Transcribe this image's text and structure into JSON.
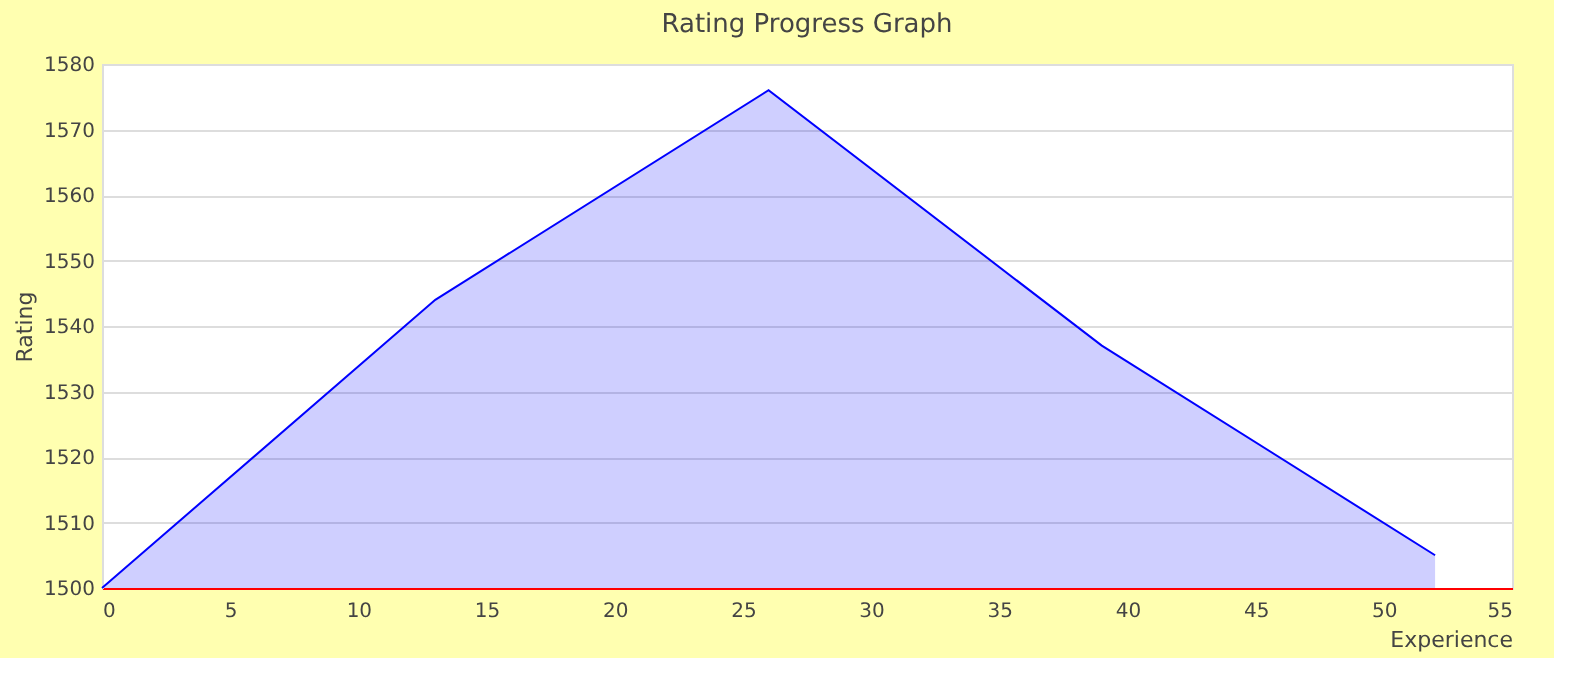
{
  "chart_data": {
    "type": "area",
    "title": "Rating Progress Graph",
    "xlabel": "Experience",
    "ylabel": "Rating",
    "x": [
      0,
      13,
      26,
      39,
      52
    ],
    "series": [
      {
        "color": "#0000ff",
        "values": [
          1500,
          1544,
          1576,
          1537,
          1505
        ]
      }
    ],
    "xlim": [
      0,
      55
    ],
    "xticks": [
      0,
      5,
      10,
      15,
      20,
      25,
      30,
      35,
      40,
      45,
      50,
      55
    ],
    "ylim": [
      1500,
      1580
    ],
    "yticks": [
      1500,
      1510,
      1520,
      1530,
      1540,
      1550,
      1560,
      1570,
      1580
    ],
    "grid": "y"
  }
}
